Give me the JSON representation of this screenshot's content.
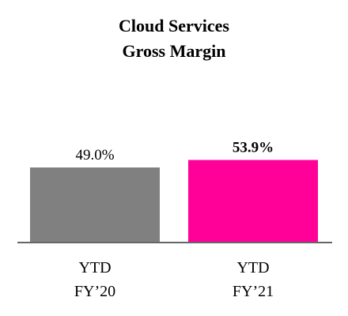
{
  "chart_data": {
    "type": "bar",
    "title": [
      "Cloud Services",
      "Gross Margin"
    ],
    "categories": [
      [
        "YTD",
        "FY’20"
      ],
      [
        "YTD",
        "FY’21"
      ]
    ],
    "values": [
      49.0,
      53.9
    ],
    "value_labels": [
      "49.0%",
      "53.9%"
    ],
    "value_label_bold": [
      false,
      true
    ],
    "colors": [
      "#808080",
      "#FF0099"
    ],
    "axis_color": "#666666",
    "xlabel": "",
    "ylabel": "",
    "grid": false,
    "legend": "none"
  }
}
